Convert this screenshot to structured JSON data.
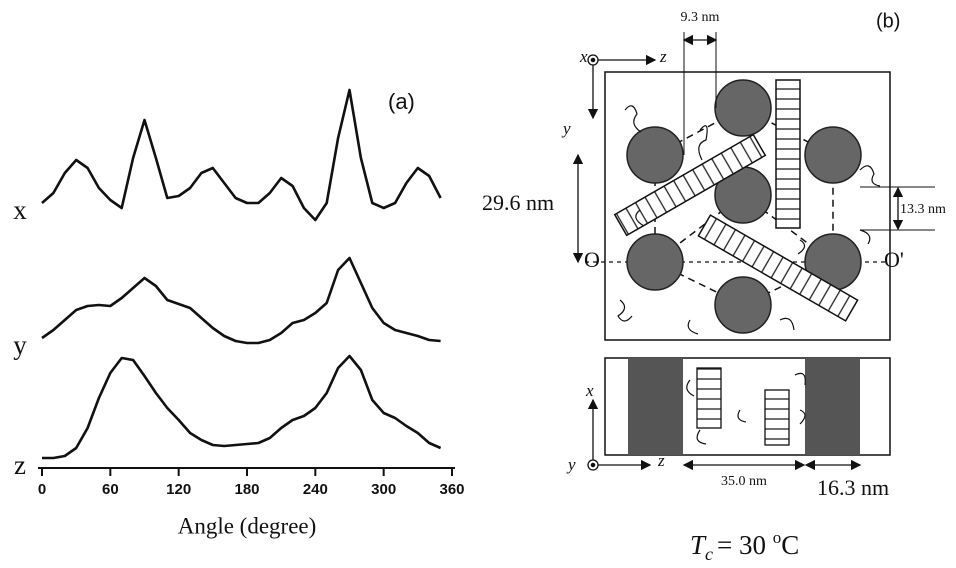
{
  "chart_data": {
    "type": "line",
    "panel_label": "(a)",
    "x_label": "Angle (degree)",
    "x": [
      0,
      10,
      20,
      30,
      40,
      50,
      60,
      70,
      80,
      90,
      100,
      110,
      120,
      130,
      140,
      150,
      160,
      170,
      180,
      190,
      200,
      210,
      220,
      230,
      240,
      250,
      260,
      270,
      280,
      290,
      300,
      310,
      320,
      330,
      340,
      350
    ],
    "series": [
      {
        "name": "x",
        "color": "#111111",
        "values": [
          265,
          275,
          295,
          308,
          300,
          280,
          268,
          260,
          310,
          348,
          310,
          270,
          272,
          280,
          295,
          300,
          285,
          270,
          265,
          265,
          275,
          290,
          282,
          260,
          248,
          265,
          330,
          378,
          310,
          265,
          260,
          265,
          285,
          300,
          292,
          270
        ]
      },
      {
        "name": "y",
        "color": "#111111",
        "values": [
          130,
          138,
          148,
          158,
          162,
          163,
          162,
          170,
          180,
          190,
          182,
          168,
          164,
          160,
          150,
          140,
          132,
          127,
          125,
          125,
          128,
          135,
          145,
          148,
          155,
          165,
          198,
          210,
          185,
          160,
          145,
          138,
          135,
          132,
          128,
          127
        ]
      },
      {
        "name": "z",
        "color": "#111111",
        "values": [
          10,
          10,
          12,
          20,
          40,
          70,
          95,
          110,
          108,
          92,
          75,
          60,
          48,
          35,
          28,
          23,
          22,
          23,
          24,
          25,
          30,
          40,
          48,
          52,
          60,
          75,
          100,
          112,
          98,
          68,
          55,
          50,
          42,
          35,
          25,
          20
        ]
      }
    ],
    "xlim": [
      0,
      360
    ],
    "xticks": [
      0,
      60,
      120,
      180,
      240,
      300,
      360
    ],
    "ylim": [
      0,
      400
    ]
  },
  "panel_b": {
    "label": "(b)",
    "top_view": {
      "axis_x": "x",
      "axis_z": "z",
      "axis_y": "y",
      "spacing": "9.3 nm",
      "height": "29.6 nm",
      "offset": "13.3 nm",
      "origin": "O",
      "origin_prime": "O'"
    },
    "side_view": {
      "axis_x": "x",
      "axis_y": "y",
      "axis_z": "z",
      "gap": "35.0 nm",
      "width": "16.3 nm"
    },
    "condition": {
      "symbol": "T",
      "subscript": "c",
      "value": "= 30 ",
      "degree": "o",
      "unit": "C"
    }
  }
}
